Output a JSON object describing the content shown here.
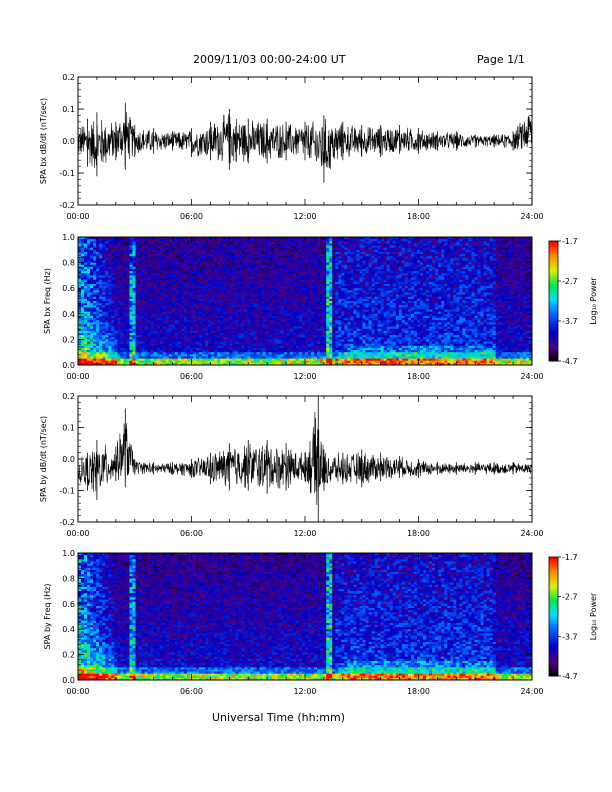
{
  "header": {
    "date_range": "2009/11/03  00:00-24:00 UT",
    "page": "Page 1/1"
  },
  "xlabel": "Universal Time (hh:mm)",
  "time_ticks": [
    "00:00",
    "06:00",
    "12:00",
    "18:00",
    "24:00"
  ],
  "colorbar": {
    "label": "Log₁₀ Power",
    "ticks": [
      "-1.7",
      "-2.7",
      "-3.7",
      "-4.7"
    ],
    "range": [
      -4.7,
      -1.7
    ]
  },
  "chart_data": [
    {
      "type": "line",
      "ylabel": "SPA bx dB/dt (nT/sec)",
      "xlim": [
        0,
        24
      ],
      "ylim": [
        -0.2,
        0.2
      ],
      "yticks": [
        "0.2",
        "0.1",
        "0.0",
        "-0.1",
        "-0.2"
      ],
      "envelope": {
        "hour": [
          0,
          0.5,
          1,
          2,
          2.5,
          3,
          4,
          5,
          6,
          7,
          8,
          9,
          10,
          11,
          12,
          13,
          14,
          15,
          16,
          17,
          18,
          19,
          20,
          21,
          22,
          23,
          24
        ],
        "max": [
          0.05,
          0.07,
          0.09,
          0.06,
          0.12,
          0.05,
          0.04,
          0.03,
          0.04,
          0.06,
          0.1,
          0.07,
          0.07,
          0.06,
          0.06,
          0.08,
          0.06,
          0.05,
          0.05,
          0.05,
          0.04,
          0.03,
          0.03,
          0.02,
          0.02,
          0.03,
          0.12
        ],
        "min": [
          -0.05,
          -0.08,
          -0.11,
          -0.06,
          -0.09,
          -0.05,
          -0.04,
          -0.03,
          -0.05,
          -0.06,
          -0.09,
          -0.07,
          -0.07,
          -0.06,
          -0.06,
          -0.13,
          -0.06,
          -0.05,
          -0.05,
          -0.04,
          -0.04,
          -0.03,
          -0.03,
          -0.02,
          -0.02,
          -0.03,
          -0.05
        ]
      }
    },
    {
      "type": "heatmap",
      "ylabel": "SPA bx Freq (Hz)",
      "xlim": [
        0,
        24
      ],
      "ylim": [
        0.0,
        1.0
      ],
      "yticks": [
        "1.0",
        "0.8",
        "0.6",
        "0.4",
        "0.2",
        "0.0"
      ],
      "colorbar_label": "Log₁₀ Power",
      "z_range": [
        -4.7,
        -1.7
      ]
    },
    {
      "type": "line",
      "ylabel": "SPA by dB/dt (nT/sec)",
      "xlim": [
        0,
        24
      ],
      "ylim": [
        -0.2,
        0.2
      ],
      "yticks": [
        "0.2",
        "0.1",
        "0.0",
        "-0.1",
        "-0.2"
      ],
      "envelope": {
        "hour": [
          0,
          0.5,
          1,
          2,
          2.5,
          3,
          4,
          5,
          6,
          7,
          8,
          9,
          10,
          11,
          12,
          12.7,
          13,
          14,
          15,
          16,
          17,
          18,
          19,
          20,
          21,
          22,
          23,
          24
        ],
        "max": [
          0.0,
          0.02,
          0.06,
          0.04,
          0.16,
          0.0,
          -0.01,
          -0.01,
          0.0,
          0.02,
          0.05,
          0.06,
          0.06,
          0.05,
          0.02,
          0.2,
          0.03,
          0.02,
          0.03,
          0.02,
          0.01,
          0.0,
          -0.01,
          -0.01,
          -0.01,
          -0.01,
          -0.01,
          -0.01
        ],
        "min": [
          -0.08,
          -0.1,
          -0.13,
          -0.07,
          -0.09,
          -0.05,
          -0.05,
          -0.05,
          -0.06,
          -0.08,
          -0.1,
          -0.1,
          -0.11,
          -0.1,
          -0.07,
          -0.2,
          -0.1,
          -0.08,
          -0.09,
          -0.07,
          -0.06,
          -0.06,
          -0.05,
          -0.05,
          -0.05,
          -0.05,
          -0.05,
          -0.05
        ]
      }
    },
    {
      "type": "heatmap",
      "ylabel": "SPA by Freq (Hz)",
      "xlim": [
        0,
        24
      ],
      "ylim": [
        0.0,
        1.0
      ],
      "yticks": [
        "1.0",
        "0.8",
        "0.6",
        "0.4",
        "0.2",
        "0.0"
      ],
      "colorbar_label": "Log₁₀ Power",
      "z_range": [
        -4.7,
        -1.7
      ]
    }
  ]
}
